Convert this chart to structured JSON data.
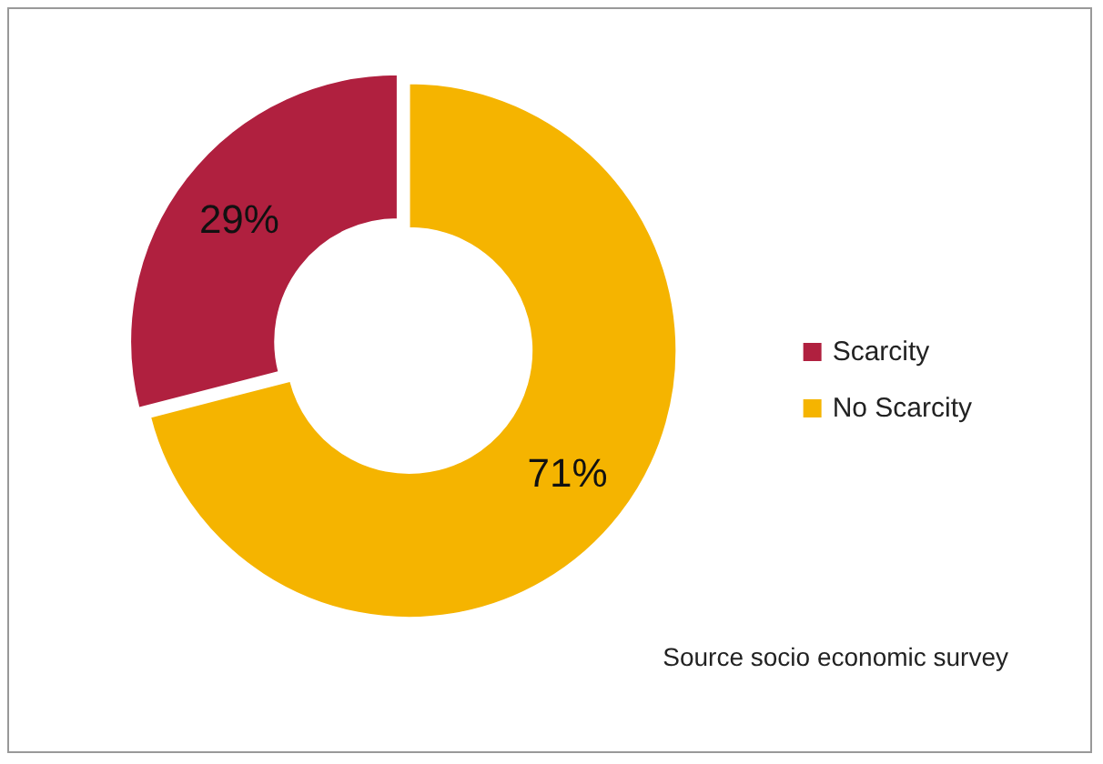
{
  "chart_data": {
    "type": "donut",
    "categories": [
      "Scarcity",
      "No Scarcity"
    ],
    "values": [
      29,
      71
    ],
    "colors": [
      "#b0203f",
      "#f5b400"
    ],
    "value_labels": [
      "29%",
      "71%"
    ],
    "legend": "right",
    "annotations": [
      "Source socio economic survey"
    ]
  }
}
